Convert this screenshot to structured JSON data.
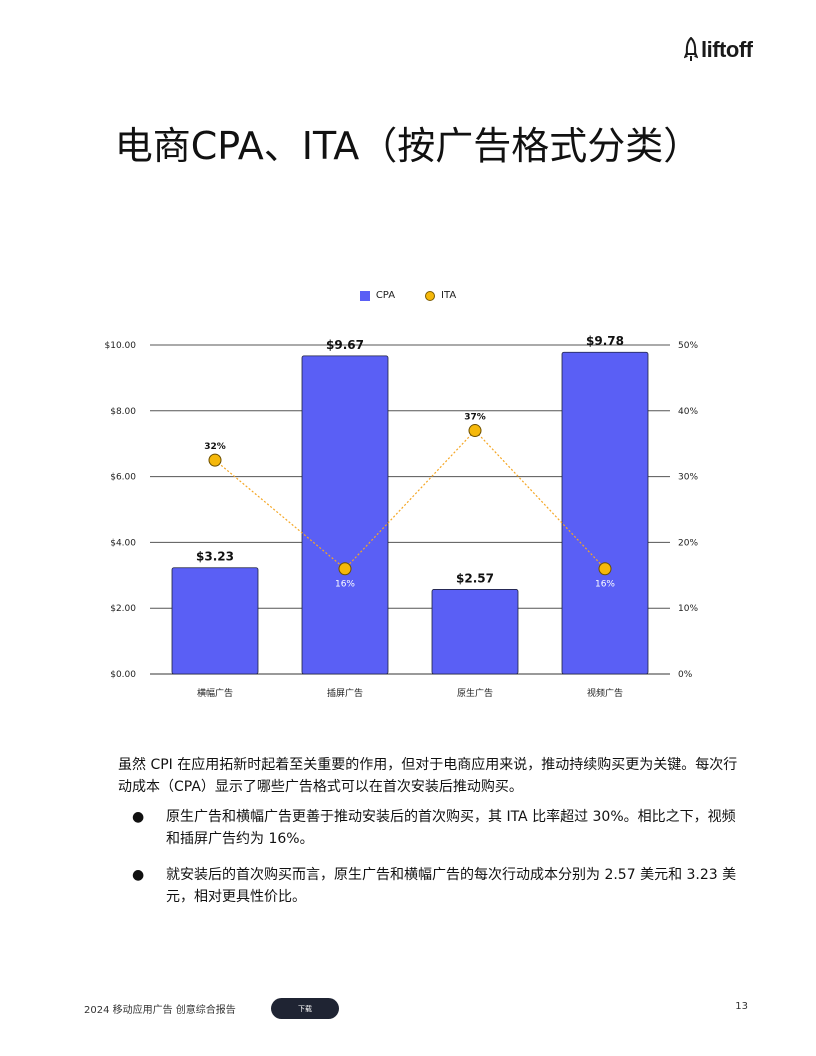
{
  "brand": {
    "logo_text": "liftoff"
  },
  "page_title": "电商CPA、ITA（按广告格式分类）",
  "legend": {
    "cpa": "CPA",
    "ita": "ITA"
  },
  "chart_data": {
    "type": "bar",
    "categories": [
      "横幅广告",
      "插屏广告",
      "原生广告",
      "视频广告"
    ],
    "series": [
      {
        "name": "CPA",
        "type": "bar",
        "axis": "left",
        "values": [
          3.23,
          9.67,
          2.57,
          9.78
        ],
        "labels": [
          "$3.23",
          "$9.67",
          "$2.57",
          "$9.78"
        ]
      },
      {
        "name": "ITA",
        "type": "line",
        "axis": "right",
        "values": [
          32.5,
          16,
          37,
          16
        ],
        "labels": [
          "32%",
          "16%",
          "37%",
          "16%"
        ]
      }
    ],
    "y_left": {
      "ticks": [
        "$0.00",
        "$2.00",
        "$4.00",
        "$6.00",
        "$8.00",
        "$10.00"
      ],
      "ylim": [
        0,
        10
      ]
    },
    "y_right": {
      "ticks": [
        "0%",
        "10%",
        "20%",
        "30%",
        "40%",
        "50%"
      ],
      "ylim": [
        0,
        50
      ]
    },
    "colors": {
      "bar": "#5a5ff5",
      "line": "#f5a623",
      "marker": "#f5b80a"
    },
    "grid": true,
    "legend_position": "top-center"
  },
  "body": {
    "intro": "虽然 CPI 在应用拓新时起着至关重要的作用，但对于电商应用来说，推动持续购买更为关键。每次行动成本（CPA）显示了哪些广告格式可以在首次安装后推动购买。",
    "bullets": [
      "原生广告和横幅广告更善于推动安装后的首次购买，其 ITA 比率超过 30%。相比之下，视频和插屏广告约为 16%。",
      "就安装后的首次购买而言，原生广告和横幅广告的每次行动成本分别为 2.57 美元和 3.23 美元，相对更具性价比。"
    ]
  },
  "footer": {
    "report_title": "2024 移动应用广告 创意综合报告",
    "download_label": "下载",
    "page_number": "13"
  }
}
